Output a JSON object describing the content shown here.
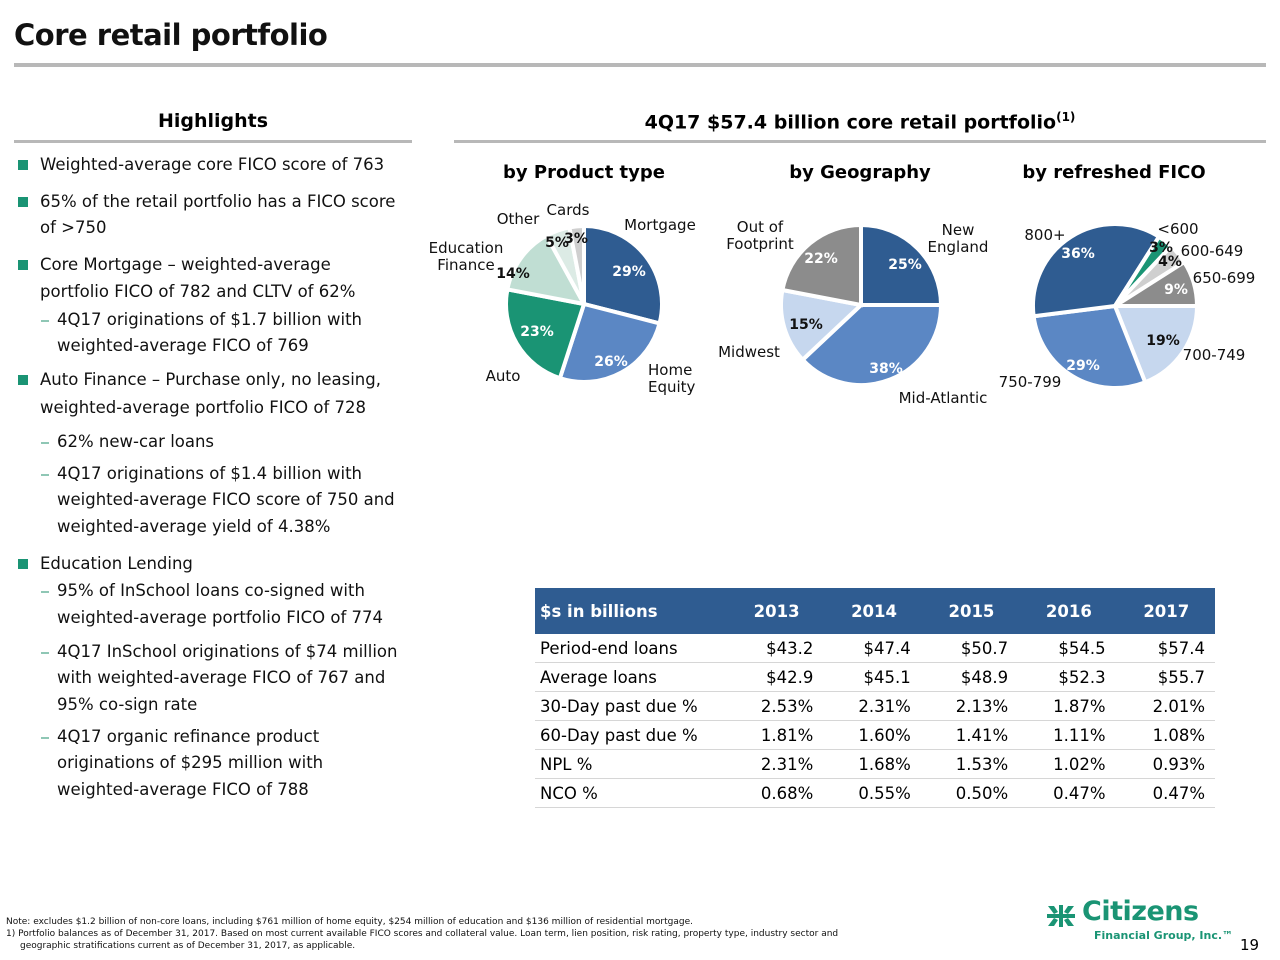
{
  "page": {
    "title": "Core retail portfolio",
    "page_number": "19"
  },
  "highlights": {
    "heading": "Highlights",
    "lines": [
      {
        "type": "bullet",
        "text": "Weighted-average core FICO score of 763"
      },
      {
        "type": "bullet",
        "text": "65% of the retail portfolio has a FICO score"
      },
      {
        "type": "cont",
        "text": "of >750"
      },
      {
        "type": "bullet",
        "text": "Core Mortgage – weighted-average"
      },
      {
        "type": "cont",
        "text": "portfolio FICO of 782 and CLTV of 62%"
      },
      {
        "type": "dash",
        "text": "4Q17 originations of $1.7 billion with"
      },
      {
        "type": "subcont",
        "text": "weighted-average FICO of 769"
      },
      {
        "type": "bullet",
        "text": "Auto Finance – Purchase only, no leasing,"
      },
      {
        "type": "cont",
        "text": "weighted-average portfolio FICO of 728"
      },
      {
        "type": "dash",
        "text": "62% new-car loans"
      },
      {
        "type": "dash",
        "text": "4Q17 originations of $1.4 billion with"
      },
      {
        "type": "subcont",
        "text": "weighted-average FICO score of 750 and"
      },
      {
        "type": "subcont",
        "text": "weighted-average yield of 4.38%"
      },
      {
        "type": "bullet",
        "text": "Education Lending"
      },
      {
        "type": "dash",
        "text": "95% of InSchool loans co-signed with"
      },
      {
        "type": "subcont",
        "text": "weighted-average portfolio FICO of 774"
      },
      {
        "type": "dash",
        "text": "4Q17 InSchool originations of $74 million"
      },
      {
        "type": "subcont",
        "text": "with weighted-average FICO of 767 and"
      },
      {
        "type": "subcont",
        "text": "95% co-sign rate"
      },
      {
        "type": "dash",
        "text": "4Q17 organic refinance product"
      },
      {
        "type": "subcont",
        "text": "originations of $295 million with"
      },
      {
        "type": "subcont",
        "text": "weighted-average FICO of 788"
      }
    ]
  },
  "portfolio": {
    "heading": "4Q17 $57.4 billion core retail portfolio",
    "heading_sup": "(1)"
  },
  "colors": {
    "dark_blue": "#2f5c91",
    "mid_blue": "#5b87c4",
    "light_blue": "#c6d7ee",
    "green": "#1a9474",
    "light_green": "#c0ded3",
    "pale_green": "#dcebe5",
    "gray": "#8c8c8c",
    "light_gray": "#cfcfcf",
    "brand": "#1a9474"
  },
  "chart_data": [
    {
      "type": "pie",
      "title": "by Product type",
      "start": "12 o'clock, clockwise",
      "slices": [
        {
          "label": "Mortgage",
          "value": 29,
          "display": "29%",
          "color": "#2f5c91",
          "text_color": "#ffffff"
        },
        {
          "label": "Home Equity",
          "value": 26,
          "display": "26%",
          "color": "#5b87c4",
          "text_color": "#ffffff"
        },
        {
          "label": "Auto",
          "value": 23,
          "display": "23%",
          "color": "#1a9474",
          "text_color": "#ffffff"
        },
        {
          "label": "Education Finance",
          "value": 14,
          "display": "14%",
          "color": "#c0ded3",
          "text_color": "#111111"
        },
        {
          "label": "Other",
          "value": 5,
          "display": "5%",
          "color": "#dcebe5",
          "text_color": "#111111"
        },
        {
          "label": "Cards",
          "value": 3,
          "display": "3%",
          "color": "#cfcfcf",
          "text_color": "#111111"
        }
      ]
    },
    {
      "type": "pie",
      "title": "by Geography",
      "start": "12 o'clock, clockwise",
      "slices": [
        {
          "label": "New England",
          "value": 25,
          "display": "25%",
          "color": "#2f5c91",
          "text_color": "#ffffff"
        },
        {
          "label": "Mid-Atlantic",
          "value": 38,
          "display": "38%",
          "color": "#5b87c4",
          "text_color": "#ffffff"
        },
        {
          "label": "Midwest",
          "value": 15,
          "display": "15%",
          "color": "#c6d7ee",
          "text_color": "#111111"
        },
        {
          "label": "Out of Footprint",
          "value": 22,
          "display": "22%",
          "color": "#8c8c8c",
          "text_color": "#ffffff"
        }
      ]
    },
    {
      "type": "pie",
      "title": "by refreshed FICO",
      "start": "3 o'clock, clockwise",
      "slices": [
        {
          "label": "700-749",
          "value": 19,
          "display": "19%",
          "color": "#c6d7ee",
          "text_color": "#111111"
        },
        {
          "label": "750-799",
          "value": 29,
          "display": "29%",
          "color": "#5b87c4",
          "text_color": "#ffffff"
        },
        {
          "label": "800+",
          "value": 36,
          "display": "36%",
          "color": "#2f5c91",
          "text_color": "#ffffff"
        },
        {
          "label": "<600",
          "value": 3,
          "display": "3%",
          "color": "#1a9474",
          "text_color": "#111111"
        },
        {
          "label": "600-649",
          "value": 4,
          "display": "4%",
          "color": "#cfcfcf",
          "text_color": "#111111"
        },
        {
          "label": "650-699",
          "value": 9,
          "display": "9%",
          "color": "#8c8c8c",
          "text_color": "#ffffff"
        }
      ]
    },
    {
      "type": "table",
      "header": [
        "$s in billions",
        "2013",
        "2014",
        "2015",
        "2016",
        "2017"
      ],
      "rows": [
        [
          "Period-end loans",
          "$43.2",
          "$47.4",
          "$50.7",
          "$54.5",
          "$57.4"
        ],
        [
          "Average loans",
          "$42.9",
          "$45.1",
          "$48.9",
          "$52.3",
          "$55.7"
        ],
        [
          "30-Day past due %",
          "2.53%",
          "2.31%",
          "2.13%",
          "1.87%",
          "2.01%"
        ],
        [
          "60-Day past due %",
          "1.81%",
          "1.60%",
          "1.41%",
          "1.11%",
          "1.08%"
        ],
        [
          "NPL %",
          "2.31%",
          "1.68%",
          "1.53%",
          "1.02%",
          "0.93%"
        ],
        [
          "NCO %",
          "0.68%",
          "0.55%",
          "0.50%",
          "0.47%",
          "0.47%"
        ]
      ]
    }
  ],
  "footnotes": {
    "note": "Note: excludes $1.2 billion of non-core loans, including $761 million of home equity, $254 million of education and $136 million of residential mortgage.",
    "fn1_line1": "1)  Portfolio balances as of December 31, 2017. Based on most current available FICO scores and collateral value. Loan term, lien position, risk rating, property type, industry sector and",
    "fn1_line2": "geographic stratifications current as of December 31, 2017, as applicable."
  },
  "logo": {
    "word": "Citizens",
    "sub": "Financial Group, Inc.™"
  }
}
